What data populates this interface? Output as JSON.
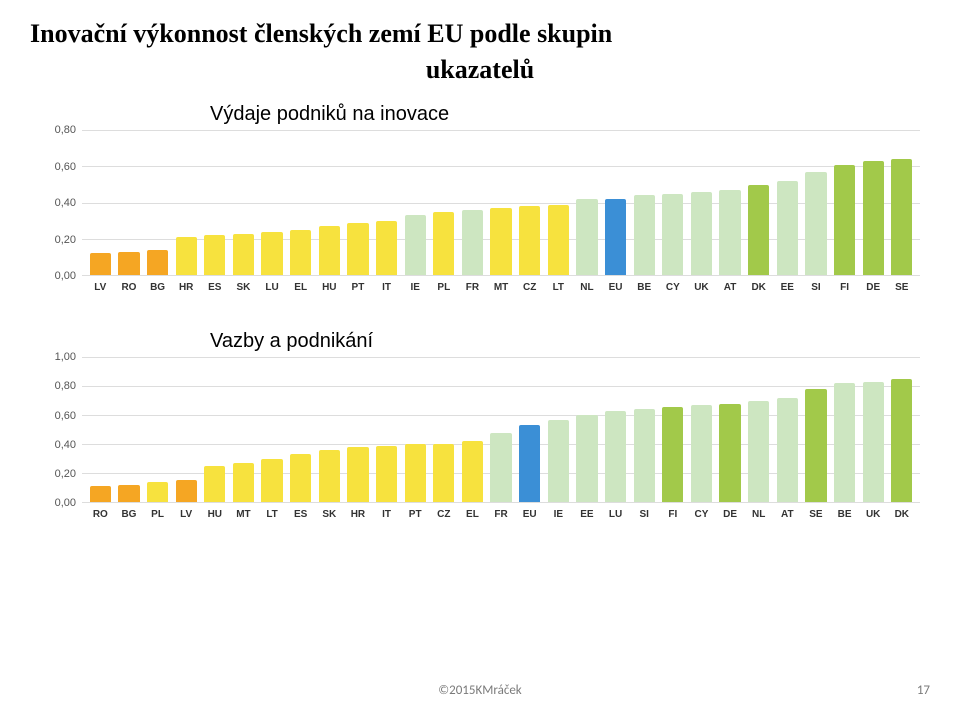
{
  "title_line1": "Inovační výkonnost členských zemí EU podle skupin",
  "title_line2": "ukazatelů",
  "footer_copy": "©2015KMráček",
  "footer_page": "17",
  "colors": {
    "orange": "#f5a623",
    "yellow": "#f7e23e",
    "paleGreen": "#cde6c1",
    "green": "#a2c94a",
    "blue": "#3b8fd6",
    "background": "#ffffff",
    "grid": "#dddddd",
    "axis_text": "#555555"
  },
  "chart1": {
    "label": "Výdaje podniků na inovace",
    "type": "bar",
    "ymin": 0.0,
    "ymax": 0.8,
    "ytick_step": 0.2,
    "yticks": [
      "0,00",
      "0,20",
      "0,40",
      "0,60",
      "0,80"
    ],
    "label_fontsize": 20,
    "ytick_fontsize": 11,
    "xtick_fontsize": 10,
    "bar_width": 0.74,
    "bars": [
      {
        "code": "LV",
        "value": 0.12,
        "color": "#f5a623"
      },
      {
        "code": "RO",
        "value": 0.13,
        "color": "#f5a623"
      },
      {
        "code": "BG",
        "value": 0.14,
        "color": "#f5a623"
      },
      {
        "code": "HR",
        "value": 0.21,
        "color": "#f7e23e"
      },
      {
        "code": "ES",
        "value": 0.22,
        "color": "#f7e23e"
      },
      {
        "code": "SK",
        "value": 0.23,
        "color": "#f7e23e"
      },
      {
        "code": "LU",
        "value": 0.24,
        "color": "#f7e23e"
      },
      {
        "code": "EL",
        "value": 0.25,
        "color": "#f7e23e"
      },
      {
        "code": "HU",
        "value": 0.27,
        "color": "#f7e23e"
      },
      {
        "code": "PT",
        "value": 0.29,
        "color": "#f7e23e"
      },
      {
        "code": "IT",
        "value": 0.3,
        "color": "#f7e23e"
      },
      {
        "code": "IE",
        "value": 0.33,
        "color": "#cde6c1"
      },
      {
        "code": "PL",
        "value": 0.35,
        "color": "#f7e23e"
      },
      {
        "code": "FR",
        "value": 0.36,
        "color": "#cde6c1"
      },
      {
        "code": "MT",
        "value": 0.37,
        "color": "#f7e23e"
      },
      {
        "code": "CZ",
        "value": 0.38,
        "color": "#f7e23e"
      },
      {
        "code": "LT",
        "value": 0.39,
        "color": "#f7e23e"
      },
      {
        "code": "NL",
        "value": 0.42,
        "color": "#cde6c1"
      },
      {
        "code": "EU",
        "value": 0.42,
        "color": "#3b8fd6"
      },
      {
        "code": "BE",
        "value": 0.44,
        "color": "#cde6c1"
      },
      {
        "code": "CY",
        "value": 0.45,
        "color": "#cde6c1"
      },
      {
        "code": "UK",
        "value": 0.46,
        "color": "#cde6c1"
      },
      {
        "code": "AT",
        "value": 0.47,
        "color": "#cde6c1"
      },
      {
        "code": "DK",
        "value": 0.5,
        "color": "#a2c94a"
      },
      {
        "code": "EE",
        "value": 0.52,
        "color": "#cde6c1"
      },
      {
        "code": "SI",
        "value": 0.57,
        "color": "#cde6c1"
      },
      {
        "code": "FI",
        "value": 0.61,
        "color": "#a2c94a"
      },
      {
        "code": "DE",
        "value": 0.63,
        "color": "#a2c94a"
      },
      {
        "code": "SE",
        "value": 0.64,
        "color": "#a2c94a"
      }
    ]
  },
  "chart2": {
    "label": "Vazby a podnikání",
    "type": "bar",
    "ymin": 0.0,
    "ymax": 1.0,
    "ytick_step": 0.2,
    "yticks": [
      "0,00",
      "0,20",
      "0,40",
      "0,60",
      "0,80",
      "1,00"
    ],
    "label_fontsize": 20,
    "ytick_fontsize": 11,
    "xtick_fontsize": 10,
    "bar_width": 0.74,
    "bars": [
      {
        "code": "RO",
        "value": 0.11,
        "color": "#f5a623"
      },
      {
        "code": "BG",
        "value": 0.12,
        "color": "#f5a623"
      },
      {
        "code": "PL",
        "value": 0.14,
        "color": "#f7e23e"
      },
      {
        "code": "LV",
        "value": 0.15,
        "color": "#f5a623"
      },
      {
        "code": "HU",
        "value": 0.25,
        "color": "#f7e23e"
      },
      {
        "code": "MT",
        "value": 0.27,
        "color": "#f7e23e"
      },
      {
        "code": "LT",
        "value": 0.3,
        "color": "#f7e23e"
      },
      {
        "code": "ES",
        "value": 0.33,
        "color": "#f7e23e"
      },
      {
        "code": "SK",
        "value": 0.36,
        "color": "#f7e23e"
      },
      {
        "code": "HR",
        "value": 0.38,
        "color": "#f7e23e"
      },
      {
        "code": "IT",
        "value": 0.39,
        "color": "#f7e23e"
      },
      {
        "code": "PT",
        "value": 0.4,
        "color": "#f7e23e"
      },
      {
        "code": "CZ",
        "value": 0.4,
        "color": "#f7e23e"
      },
      {
        "code": "EL",
        "value": 0.42,
        "color": "#f7e23e"
      },
      {
        "code": "FR",
        "value": 0.48,
        "color": "#cde6c1"
      },
      {
        "code": "EU",
        "value": 0.53,
        "color": "#3b8fd6"
      },
      {
        "code": "IE",
        "value": 0.57,
        "color": "#cde6c1"
      },
      {
        "code": "EE",
        "value": 0.6,
        "color": "#cde6c1"
      },
      {
        "code": "LU",
        "value": 0.63,
        "color": "#cde6c1"
      },
      {
        "code": "SI",
        "value": 0.64,
        "color": "#cde6c1"
      },
      {
        "code": "FI",
        "value": 0.66,
        "color": "#a2c94a"
      },
      {
        "code": "CY",
        "value": 0.67,
        "color": "#cde6c1"
      },
      {
        "code": "DE",
        "value": 0.68,
        "color": "#a2c94a"
      },
      {
        "code": "NL",
        "value": 0.7,
        "color": "#cde6c1"
      },
      {
        "code": "AT",
        "value": 0.72,
        "color": "#cde6c1"
      },
      {
        "code": "SE",
        "value": 0.78,
        "color": "#a2c94a"
      },
      {
        "code": "BE",
        "value": 0.82,
        "color": "#cde6c1"
      },
      {
        "code": "UK",
        "value": 0.83,
        "color": "#cde6c1"
      },
      {
        "code": "DK",
        "value": 0.85,
        "color": "#a2c94a"
      }
    ]
  }
}
